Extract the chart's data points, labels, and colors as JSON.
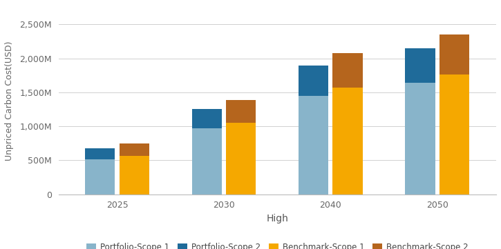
{
  "years": [
    "2025",
    "2030",
    "2040",
    "2050"
  ],
  "portfolio_scope1": [
    510,
    970,
    1450,
    1640
  ],
  "portfolio_scope2": [
    165,
    285,
    445,
    510
  ],
  "benchmark_scope1": [
    560,
    1050,
    1570,
    1760
  ],
  "benchmark_scope2": [
    185,
    335,
    510,
    590
  ],
  "colors": {
    "portfolio_scope1": "#88b4ca",
    "portfolio_scope2": "#1f6b9a",
    "benchmark_scope1": "#f5a800",
    "benchmark_scope2": "#b5651d"
  },
  "ylabel": "Unpriced Carbon Cost(USD)",
  "xlabel": "High",
  "ylim": [
    0,
    2750
  ],
  "ytick_values": [
    0,
    500,
    1000,
    1500,
    2000,
    2500
  ],
  "ytick_labels": [
    "0",
    "500M",
    "1,000M",
    "1,500M",
    "2,000M",
    "2,500M"
  ],
  "legend_labels": [
    "Portfolio-Scope 1",
    "Portfolio-Scope 2",
    "Benchmark-Scope 1",
    "Benchmark-Scope 2"
  ],
  "background_color": "#ffffff",
  "grid_color": "#d0d0d0",
  "bar_width": 0.28
}
